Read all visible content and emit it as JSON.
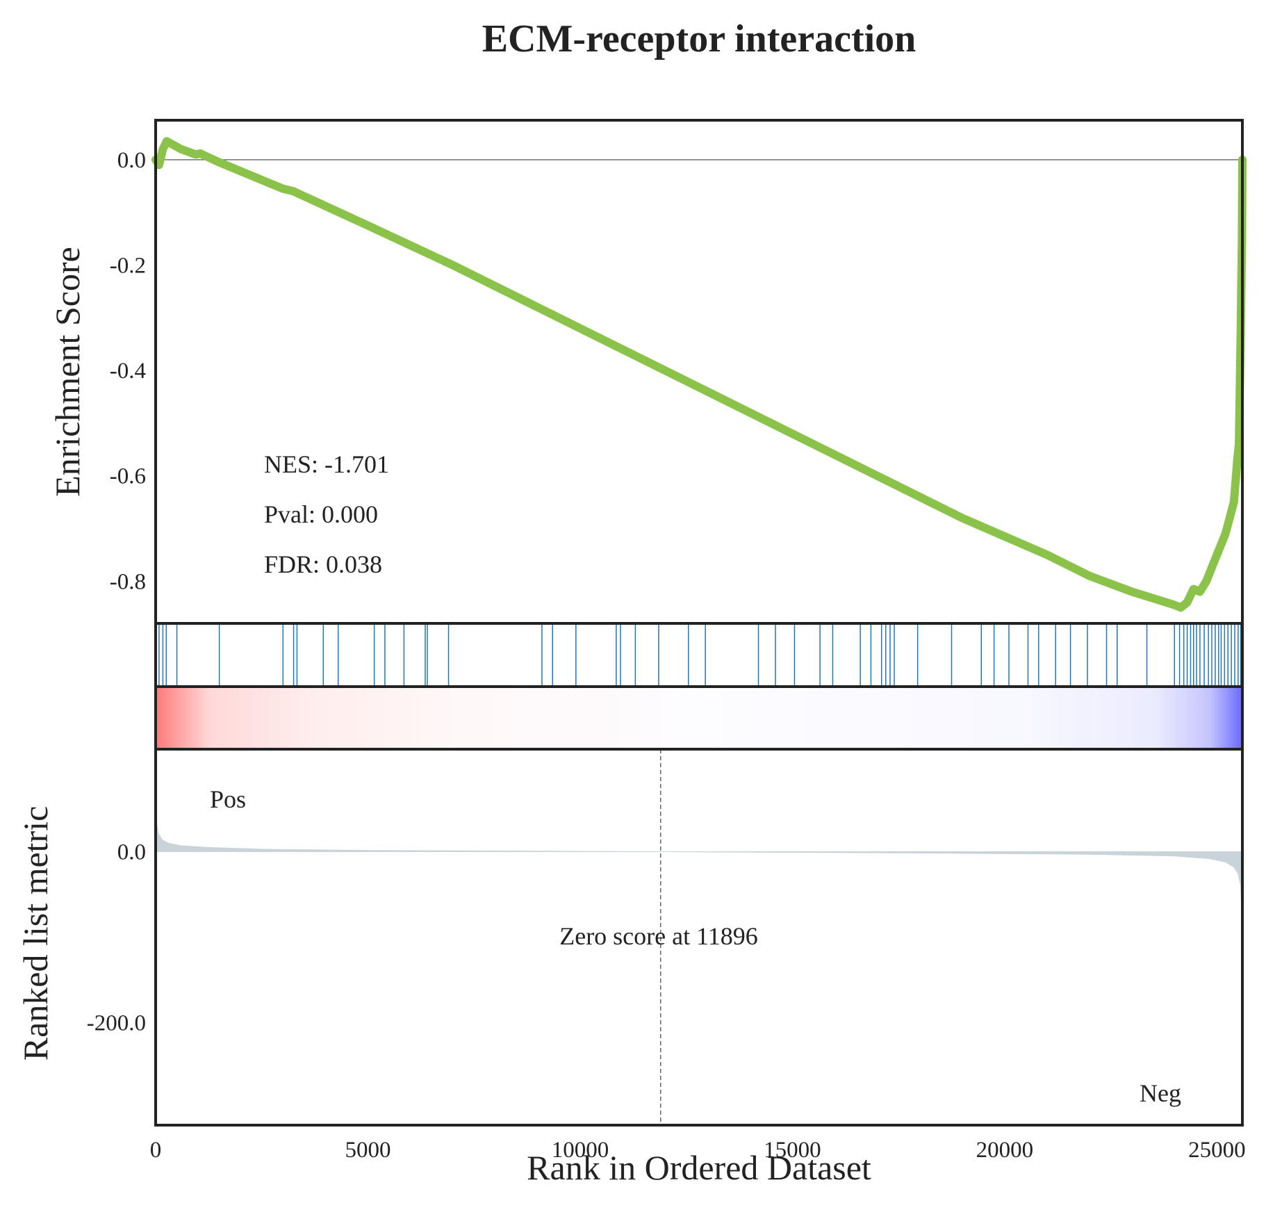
{
  "chart_data": {
    "type": "line",
    "title": "ECM-receptor interaction",
    "xlabel": "Rank in Ordered Dataset",
    "ylabel_top": "Enrichment Score",
    "ylabel_bottom": "Ranked list metric",
    "xlim": [
      0,
      25600
    ],
    "es_ylim": [
      -0.88,
      0.075
    ],
    "metric_ylim": [
      -320,
      120
    ],
    "x_ticks": [
      "0",
      "5000",
      "10000",
      "15000",
      "20000",
      "25000"
    ],
    "x_tick_values": [
      0,
      5000,
      10000,
      15000,
      20000,
      25000
    ],
    "es_ticks": [
      "0.0",
      "-0.2",
      "-0.4",
      "-0.6",
      "-0.8"
    ],
    "es_tick_values": [
      0.0,
      -0.2,
      -0.4,
      -0.6,
      -0.8
    ],
    "metric_ticks": [
      "0.0",
      "-200.0"
    ],
    "metric_tick_values": [
      0,
      -200
    ],
    "stats": {
      "nes": "NES: -1.701",
      "pval": "Pval: 0.000",
      "fdr": "FDR: 0.038"
    },
    "pos_label": "Pos",
    "neg_label": "Neg",
    "zero_score_label": "Zero score at 11896",
    "zero_score_rank": 11896,
    "es_curve": {
      "x": [
        0,
        80,
        170,
        260,
        600,
        950,
        1050,
        1500,
        3000,
        3250,
        3330,
        5000,
        7000,
        9000,
        11000,
        13000,
        15000,
        17000,
        19000,
        21000,
        22000,
        23000,
        24000,
        24150,
        24300,
        24450,
        24600,
        24750,
        24900,
        25050,
        25200,
        25300,
        25400,
        25480,
        25520,
        25560,
        25590,
        25600
      ],
      "y": [
        0.0,
        -0.01,
        0.02,
        0.035,
        0.02,
        0.01,
        0.012,
        -0.005,
        -0.055,
        -0.06,
        -0.063,
        -0.125,
        -0.2,
        -0.28,
        -0.36,
        -0.44,
        -0.52,
        -0.6,
        -0.68,
        -0.75,
        -0.79,
        -0.82,
        -0.845,
        -0.85,
        -0.84,
        -0.815,
        -0.82,
        -0.8,
        -0.77,
        -0.74,
        -0.71,
        -0.68,
        -0.65,
        -0.57,
        -0.54,
        -0.33,
        -0.15,
        0.0
      ]
    },
    "hit_ranks": [
      80,
      170,
      250,
      500,
      1500,
      3000,
      3250,
      3330,
      3950,
      4300,
      5150,
      5400,
      5850,
      6350,
      6400,
      6900,
      9100,
      9350,
      9900,
      10850,
      10950,
      11300,
      11850,
      12550,
      12950,
      14200,
      14600,
      15050,
      15650,
      15950,
      16600,
      16850,
      17100,
      17200,
      17300,
      17400,
      17950,
      18750,
      19450,
      19750,
      20100,
      20550,
      20800,
      21200,
      21550,
      21950,
      22400,
      22650,
      23350,
      24000,
      24120,
      24220,
      24300,
      24380,
      24450,
      24520,
      24600,
      24700,
      24800,
      24880,
      24960,
      25040,
      25100,
      25180,
      25260,
      25340,
      25420,
      25500,
      25560,
      25590
    ],
    "metric_curve": {
      "x": [
        0,
        20,
        60,
        150,
        300,
        600,
        1200,
        2500,
        5000,
        11896,
        18000,
        22000,
        24000,
        24800,
        25200,
        25400,
        25500,
        25560,
        25600
      ],
      "y": [
        55,
        35,
        22,
        14,
        10,
        7,
        5,
        3,
        1.5,
        0,
        -1.5,
        -3,
        -5,
        -8,
        -12,
        -18,
        -26,
        -40,
        -90
      ]
    },
    "colors": {
      "es_line": "#8BC34A",
      "hit_line": "#1f77b4",
      "metric_fill": "#C9D3DA",
      "pos": "#ff0000",
      "neg": "#0000ff",
      "frame": "#222222"
    }
  }
}
